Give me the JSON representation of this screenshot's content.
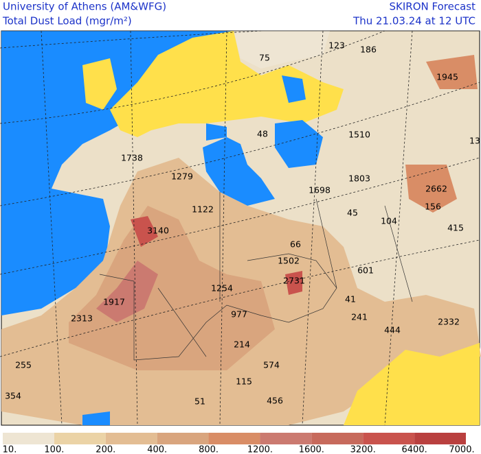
{
  "header": {
    "left_title": "University of Athens (AM&WFG)",
    "left_subtitle": "Total Dust Load (mgr/m²)",
    "right_title": "SKIRON Forecast",
    "right_subtitle": "Thu 21.03.24 at 12 UTC"
  },
  "map_labels": [
    75,
    123,
    186,
    1945,
    1510,
    1803,
    1698,
    45,
    104,
    2662,
    156,
    415,
    1738,
    1279,
    1122,
    3140,
    66,
    1502,
    601,
    2731,
    1254,
    41,
    977,
    241,
    1917,
    2313,
    444,
    2332,
    214,
    574,
    255,
    115,
    354,
    51,
    456,
    48,
    13
  ],
  "colorbar": {
    "labels": [
      "10.",
      "100.",
      "200.",
      "400.",
      "800.",
      "1200.",
      "1600.",
      "3200.",
      "6400.",
      "7000."
    ],
    "colors": [
      "#eee5d3",
      "#ebd3a6",
      "#e3bd93",
      "#d9a57e",
      "#d98d66",
      "#cb7a70",
      "#c76a5c",
      "#c9534d",
      "#b9403f"
    ]
  }
}
